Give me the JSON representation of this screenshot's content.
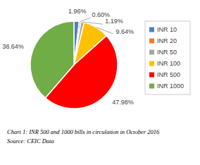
{
  "chart_data": {
    "type": "pie",
    "categories": [
      "INR 10",
      "INR 20",
      "INR 50",
      "INR 100",
      "INR 500",
      "INR 1000"
    ],
    "values": [
      1.96,
      0.6,
      1.19,
      9.64,
      47.98,
      38.64
    ],
    "value_labels": [
      "1.96%",
      "0.60%",
      "1.19%",
      "9.64%",
      "47.98%",
      "38.64%"
    ],
    "colors": [
      "#4f81bd",
      "#ed7d31",
      "#a5a5a5",
      "#ffc000",
      "#ff0000",
      "#70ad47"
    ],
    "data_labels": true,
    "legend": "right",
    "caption": "Chart 1: INR 500 and 1000 bills in circulation in October 2016",
    "source": "Source: CEIC Data"
  }
}
